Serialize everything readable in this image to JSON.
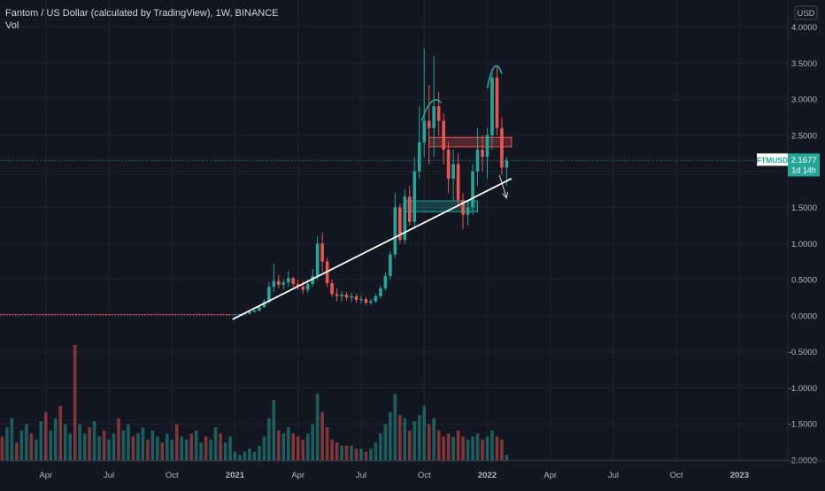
{
  "header": {
    "title": "Fantom / US Dollar (calculated by TradingView), 1W, BINANCE",
    "volume_label": "Vol"
  },
  "price_badge": {
    "symbol": "FTMUSD",
    "price": "2.1677",
    "countdown": "1d 14h"
  },
  "colors": {
    "background": "#131722",
    "up": "#26a69a",
    "down": "#ef5350",
    "grid": "#1f2430",
    "trendline": "#ffffff",
    "resistance_zone": "#ef5350",
    "support_zone": "#26a69a",
    "badge": "#26a69a"
  },
  "chart_data": {
    "type": "candlestick",
    "currency": "USD",
    "price_axis": {
      "ylim": [
        -2.0,
        4.0
      ],
      "ticks": [
        "4.0000",
        "3.5000",
        "3.0000",
        "2.5000",
        "2.0000",
        "1.5000",
        "1.0000",
        "0.5000",
        "0.0000",
        "-0.5000",
        "-1.0000",
        "-1.5000",
        "-2.0000"
      ]
    },
    "time_axis": {
      "ticks": [
        {
          "label": "Apr",
          "week": -39
        },
        {
          "label": "Jul",
          "week": -26
        },
        {
          "label": "Oct",
          "week": -13
        },
        {
          "label": "2021",
          "week": 0
        },
        {
          "label": "Apr",
          "week": 13
        },
        {
          "label": "Jul",
          "week": 26
        },
        {
          "label": "Oct",
          "week": 39
        },
        {
          "label": "2022",
          "week": 52
        },
        {
          "label": "Apr",
          "week": 65
        },
        {
          "label": "Jul",
          "week": 78
        },
        {
          "label": "Oct",
          "week": 91
        },
        {
          "label": "2023",
          "week": 104
        }
      ]
    },
    "candles": [
      [
        0.018,
        0.022,
        0.016,
        0.02
      ],
      [
        0.02,
        0.024,
        0.018,
        0.022
      ],
      [
        0.022,
        0.03,
        0.02,
        0.026
      ],
      [
        0.026,
        0.06,
        0.025,
        0.05
      ],
      [
        0.05,
        0.08,
        0.045,
        0.07
      ],
      [
        0.07,
        0.14,
        0.065,
        0.12
      ],
      [
        0.12,
        0.23,
        0.11,
        0.19
      ],
      [
        0.19,
        0.47,
        0.17,
        0.4
      ],
      [
        0.4,
        0.72,
        0.33,
        0.48
      ],
      [
        0.48,
        0.56,
        0.38,
        0.43
      ],
      [
        0.43,
        0.5,
        0.36,
        0.46
      ],
      [
        0.46,
        0.62,
        0.4,
        0.52
      ],
      [
        0.52,
        0.54,
        0.4,
        0.44
      ],
      [
        0.44,
        0.5,
        0.36,
        0.4
      ],
      [
        0.4,
        0.48,
        0.3,
        0.36
      ],
      [
        0.36,
        0.5,
        0.32,
        0.44
      ],
      [
        0.44,
        0.65,
        0.4,
        0.55
      ],
      [
        0.55,
        1.1,
        0.5,
        1.0
      ],
      [
        1.0,
        1.15,
        0.6,
        0.75
      ],
      [
        0.75,
        0.8,
        0.4,
        0.45
      ],
      [
        0.45,
        0.5,
        0.26,
        0.3
      ],
      [
        0.3,
        0.38,
        0.2,
        0.27
      ],
      [
        0.27,
        0.34,
        0.2,
        0.29
      ],
      [
        0.29,
        0.33,
        0.21,
        0.25
      ],
      [
        0.25,
        0.32,
        0.19,
        0.27
      ],
      [
        0.27,
        0.3,
        0.18,
        0.22
      ],
      [
        0.22,
        0.28,
        0.17,
        0.23
      ],
      [
        0.23,
        0.26,
        0.15,
        0.18
      ],
      [
        0.18,
        0.24,
        0.15,
        0.2
      ],
      [
        0.2,
        0.3,
        0.18,
        0.27
      ],
      [
        0.27,
        0.42,
        0.24,
        0.38
      ],
      [
        0.38,
        0.6,
        0.35,
        0.55
      ],
      [
        0.55,
        0.9,
        0.5,
        0.85
      ],
      [
        0.85,
        1.7,
        0.8,
        1.5
      ],
      [
        1.5,
        1.55,
        1.0,
        1.05
      ],
      [
        1.05,
        1.75,
        1.0,
        1.65
      ],
      [
        1.65,
        1.8,
        1.25,
        1.3
      ],
      [
        1.3,
        2.2,
        1.2,
        2.0
      ],
      [
        2.0,
        2.9,
        1.9,
        2.4
      ],
      [
        2.4,
        3.7,
        2.2,
        2.7
      ],
      [
        2.7,
        3.2,
        2.1,
        2.6
      ],
      [
        2.6,
        3.6,
        2.2,
        2.9
      ],
      [
        2.9,
        3.1,
        2.5,
        2.7
      ],
      [
        2.7,
        2.8,
        2.1,
        2.3
      ],
      [
        2.3,
        2.4,
        1.7,
        1.9
      ],
      [
        1.9,
        2.3,
        1.6,
        2.1
      ],
      [
        2.1,
        2.25,
        1.5,
        1.6
      ],
      [
        1.6,
        1.7,
        1.2,
        1.4
      ],
      [
        1.4,
        1.6,
        1.25,
        1.5
      ],
      [
        1.5,
        2.1,
        1.4,
        2.0
      ],
      [
        2.0,
        2.6,
        1.8,
        2.3
      ],
      [
        2.3,
        2.5,
        2.0,
        2.2
      ],
      [
        2.2,
        2.6,
        1.9,
        2.5
      ],
      [
        2.5,
        3.4,
        2.3,
        3.3
      ],
      [
        3.3,
        3.45,
        2.5,
        2.6
      ],
      [
        2.6,
        2.75,
        1.95,
        2.05
      ],
      [
        2.05,
        2.2,
        1.8,
        2.15
      ]
    ],
    "volume": [
      3,
      2,
      3,
      4,
      3,
      5,
      8,
      14,
      20,
      10,
      9,
      11,
      9,
      8,
      7,
      9,
      12,
      22,
      16,
      11,
      7,
      6,
      5,
      5,
      5,
      4,
      4,
      3,
      4,
      6,
      9,
      12,
      16,
      22,
      15,
      14,
      10,
      13,
      15,
      18,
      12,
      14,
      10,
      8,
      9,
      8,
      10,
      8,
      7,
      8,
      9,
      7,
      8,
      10,
      8,
      7,
      2
    ],
    "volume_prior": [
      6,
      7,
      4,
      3,
      8,
      11,
      14,
      6,
      10,
      12,
      9,
      7,
      13,
      16,
      10,
      14,
      18,
      12,
      9,
      38,
      12,
      9,
      11,
      13,
      8,
      10,
      7,
      9,
      14,
      10,
      12,
      8,
      9,
      11,
      7,
      10,
      8,
      6,
      9,
      7,
      12,
      8,
      7,
      9,
      10,
      6,
      8,
      7,
      11,
      9,
      6,
      8
    ],
    "annotations": [
      {
        "type": "trendline",
        "points": [
          [
            -0.5,
            -0.05
          ],
          [
            57,
            1.9
          ]
        ]
      },
      {
        "type": "zone",
        "name": "resistance",
        "x": [
          40,
          57
        ],
        "y": [
          2.34,
          2.47
        ]
      },
      {
        "type": "zone",
        "name": "support",
        "x": [
          35,
          50
        ],
        "y": [
          1.44,
          1.59
        ]
      },
      {
        "type": "arrow",
        "points": [
          [
            54.5,
            1.95
          ],
          [
            56,
            1.63
          ]
        ]
      },
      {
        "type": "curve",
        "name": "left-shoulder-arc",
        "points": [
          [
            38.5,
            2.7
          ],
          [
            40.5,
            3.1
          ],
          [
            42.5,
            2.95
          ]
        ]
      },
      {
        "type": "curve",
        "name": "head-arc",
        "points": [
          [
            52,
            3.15
          ],
          [
            53.5,
            3.65
          ],
          [
            55,
            3.35
          ]
        ]
      }
    ]
  }
}
